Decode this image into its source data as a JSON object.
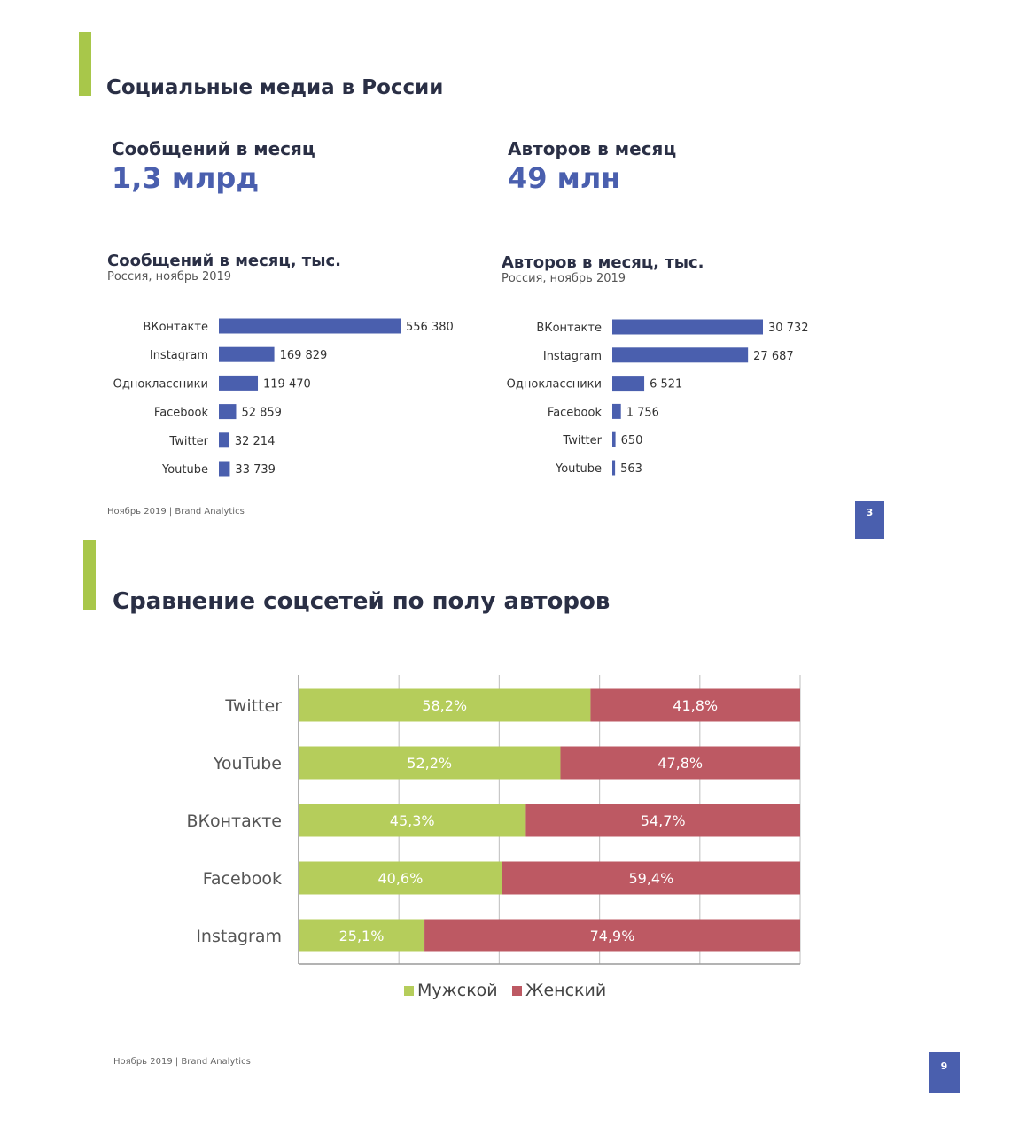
{
  "page1": {
    "title": "Социальные медиа в России",
    "kpi_messages_label": "Сообщений в месяц",
    "kpi_messages_value": "1,3 млрд",
    "kpi_authors_label": "Авторов в месяц",
    "kpi_authors_value": "49 млн",
    "footer": "Ноябрь 2019 | Brand Analytics",
    "page_number": "3"
  },
  "page2": {
    "title": "Сравнение соцсетей по полу авторов",
    "footer": "Ноябрь 2019 | Brand Analytics",
    "page_number": "9"
  },
  "colors": {
    "accent": "#a8c74a",
    "bar_blue": "#4a5fae",
    "male": "#b5cd5b",
    "female": "#bd5963"
  },
  "chart_data": [
    {
      "type": "bar",
      "orientation": "horizontal",
      "title": "Сообщений в месяц, тыс.",
      "subtitle": "Россия, ноябрь 2019",
      "categories": [
        "ВКонтакте",
        "Instagram",
        "Одноклассники",
        "Facebook",
        "Twitter",
        "Youtube"
      ],
      "values": [
        556380,
        169829,
        119470,
        52859,
        32214,
        33739
      ],
      "value_labels": [
        "556 380",
        "169 829",
        "119 470",
        "52 859",
        "32 214",
        "33 739"
      ]
    },
    {
      "type": "bar",
      "orientation": "horizontal",
      "title": "Авторов в месяц, тыс.",
      "subtitle": "Россия, ноябрь 2019",
      "categories": [
        "ВКонтакте",
        "Instagram",
        "Одноклассники",
        "Facebook",
        "Twitter",
        "Youtube"
      ],
      "values": [
        30732,
        27687,
        6521,
        1756,
        650,
        563
      ],
      "value_labels": [
        "30 732",
        "27 687",
        "6 521",
        "1 756",
        "650",
        "563"
      ]
    },
    {
      "type": "bar",
      "orientation": "horizontal",
      "stacked": true,
      "categories": [
        "Twitter",
        "YouTube",
        "ВКонтакте",
        "Facebook",
        "Instagram"
      ],
      "series": [
        {
          "name": "Мужской",
          "values": [
            58.2,
            52.2,
            45.3,
            40.6,
            25.1
          ],
          "labels": [
            "58,2%",
            "52,2%",
            "45,3%",
            "40,6%",
            "25,1%"
          ]
        },
        {
          "name": "Женский",
          "values": [
            41.8,
            47.8,
            54.7,
            59.4,
            74.9
          ],
          "labels": [
            "41,8%",
            "47,8%",
            "54,7%",
            "59,4%",
            "74,9%"
          ]
        }
      ],
      "xlim": [
        0,
        100
      ],
      "grid": true,
      "legend": "bottom"
    }
  ]
}
